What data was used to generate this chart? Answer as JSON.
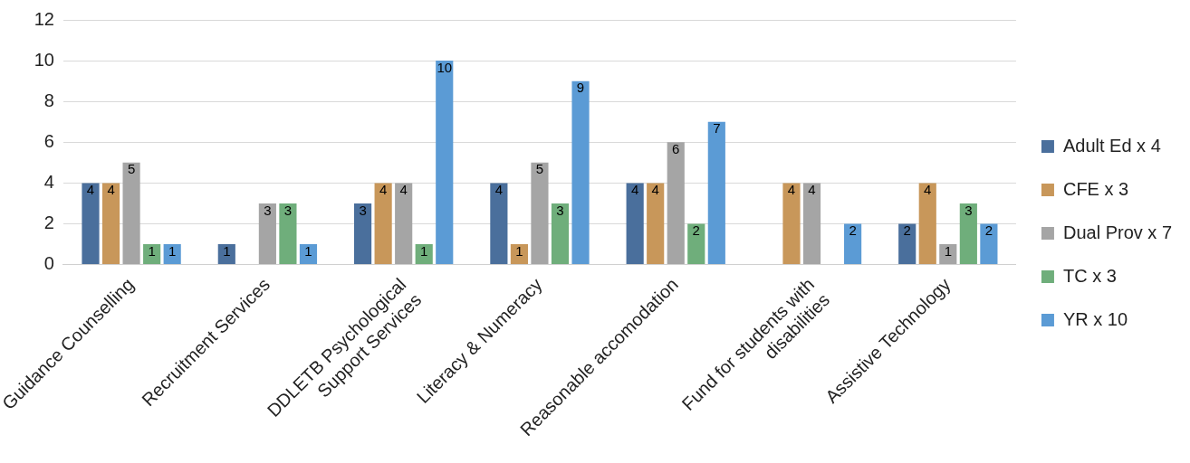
{
  "chart_data": {
    "type": "bar",
    "categories": [
      "Guidance Counselling",
      "Recruitment Services",
      "DDLETB Psychological Support Services",
      "Literacy & Numeracy",
      "Reasonable accomodation",
      "Fund for students with disabilities",
      "Assistive Technology"
    ],
    "series": [
      {
        "name": "Adult Ed x 4",
        "color": "#4a6f9c",
        "values": [
          4,
          1,
          3,
          4,
          4,
          null,
          2
        ]
      },
      {
        "name": "CFE x 3",
        "color": "#c8975a",
        "values": [
          4,
          null,
          4,
          1,
          4,
          4,
          4
        ]
      },
      {
        "name": "Dual Prov x 7",
        "color": "#a5a5a5",
        "values": [
          5,
          3,
          4,
          5,
          6,
          4,
          1
        ]
      },
      {
        "name": "TC x 3",
        "color": "#6fae7b",
        "values": [
          1,
          3,
          1,
          3,
          2,
          null,
          3
        ]
      },
      {
        "name": "YR x 10",
        "color": "#5b9bd5",
        "values": [
          1,
          1,
          10,
          9,
          7,
          2,
          2
        ]
      }
    ],
    "ylim": [
      0,
      12
    ],
    "yticks": [
      0,
      2,
      4,
      6,
      8,
      10,
      12
    ],
    "grid": "y",
    "legend": "right",
    "data_labels": true
  }
}
